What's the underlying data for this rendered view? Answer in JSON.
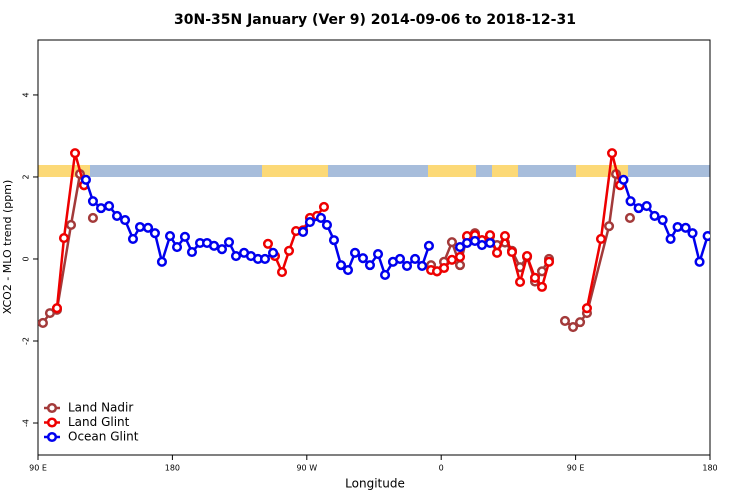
{
  "chart_data": {
    "type": "line",
    "title": "30N-35N January (Ver 9)   2014-09-06 to 2018-12-31",
    "x_label": "Longitude",
    "y_label": "XCO2 - MLO trend (ppm)",
    "xlim": [
      90,
      540
    ],
    "ylim": [
      -4.78,
      5.34
    ],
    "xticks": [
      {
        "value": 90,
        "label": "90 E"
      },
      180,
      {
        "value": 270,
        "label": "90 W"
      },
      {
        "value": 360,
        "label": "0"
      },
      {
        "value": 450,
        "label": "90 E"
      },
      {
        "value": 540,
        "label": "180"
      }
    ],
    "yticks": [
      -4,
      -2,
      0,
      2,
      4
    ],
    "legend": "bottom-left",
    "series": [
      {
        "name": "Land Nadir",
        "color": "#a33a3a",
        "x": [
          93.3,
          98.0,
          102.7,
          112.1,
          118.1,
          120.8,
          124.0,
          126.8,
          350.0,
          353.2,
          357.2,
          361.9,
          367.2,
          372.6,
          377.3,
          382.6,
          387.3,
          392.7,
          397.4,
          402.7,
          407.4,
          412.8,
          417.5,
          422.8,
          427.5,
          432.2,
          438.0,
          442.9,
          448.3,
          453.0,
          457.6,
          472.4,
          477.1,
          482.0,
          486.4
        ],
        "values": [
          -1.56,
          -1.32,
          -1.24,
          0.83,
          2.07,
          1.8,
          null,
          1.0,
          null,
          -0.15,
          -0.3,
          -0.07,
          0.41,
          -0.15,
          0.54,
          0.63,
          0.46,
          0.56,
          0.34,
          0.4,
          0.2,
          -0.2,
          0.05,
          -0.55,
          -0.3,
          0.0,
          null,
          -1.51,
          -1.66,
          -1.54,
          -1.32,
          0.8,
          2.07,
          null,
          1.0
        ]
      },
      {
        "name": "Land Glint",
        "color": "#ee0000",
        "x": [
          102.7,
          107.4,
          114.8,
          120.8,
          200.0,
          244.0,
          248.7,
          253.4,
          258.1,
          262.8,
          267.5,
          272.1,
          276.8,
          281.5,
          320.0,
          353.2,
          357.2,
          361.9,
          367.2,
          372.6,
          377.3,
          382.6,
          387.3,
          392.7,
          397.4,
          402.7,
          407.4,
          412.8,
          417.5,
          422.8,
          427.5,
          432.2,
          440.0,
          457.6,
          467.0,
          474.4,
          479.8
        ],
        "values": [
          -1.2,
          0.51,
          2.58,
          1.8,
          null,
          0.37,
          0.07,
          -0.32,
          0.2,
          0.68,
          0.7,
          1.0,
          1.05,
          1.27,
          null,
          -0.27,
          -0.3,
          -0.22,
          -0.02,
          0.05,
          0.56,
          0.58,
          0.46,
          0.58,
          0.15,
          0.56,
          0.17,
          -0.56,
          0.07,
          -0.46,
          -0.68,
          -0.07,
          null,
          -1.2,
          0.49,
          2.58,
          1.8
        ]
      },
      {
        "name": "Ocean Glint",
        "color": "#0000ee",
        "x": [
          122.1,
          126.8,
          132.2,
          137.6,
          142.9,
          148.3,
          153.6,
          158.3,
          163.7,
          168.3,
          173.0,
          178.4,
          183.1,
          188.4,
          193.1,
          198.5,
          203.2,
          207.9,
          213.2,
          217.9,
          222.6,
          228.0,
          232.6,
          237.3,
          242.0,
          247.4,
          257.0,
          267.5,
          272.1,
          279.5,
          283.5,
          288.2,
          292.9,
          297.6,
          302.3,
          307.6,
          312.3,
          317.7,
          322.4,
          327.7,
          332.4,
          337.1,
          342.5,
          347.2,
          351.8,
          362.0,
          372.6,
          377.3,
          382.6,
          387.3,
          392.7,
          470.0,
          482.1,
          486.8,
          492.2,
          497.6,
          502.9,
          508.3,
          513.6,
          518.3,
          523.7,
          528.3,
          533.0,
          538.4
        ],
        "values": [
          1.93,
          1.41,
          1.24,
          1.29,
          1.05,
          0.95,
          0.49,
          0.78,
          0.76,
          0.63,
          -0.07,
          0.56,
          0.29,
          0.54,
          0.17,
          0.39,
          0.39,
          0.32,
          0.24,
          0.41,
          0.07,
          0.15,
          0.07,
          0.0,
          0.0,
          0.15,
          null,
          0.66,
          0.9,
          1.0,
          0.83,
          0.46,
          -0.15,
          -0.27,
          0.15,
          0.02,
          -0.15,
          0.12,
          -0.39,
          -0.07,
          0.0,
          -0.17,
          0.0,
          -0.17,
          0.32,
          null,
          0.29,
          0.39,
          0.44,
          0.34,
          0.39,
          null,
          1.93,
          1.41,
          1.24,
          1.29,
          1.05,
          0.95,
          0.49,
          0.78,
          0.76,
          0.63,
          -0.07,
          0.56
        ]
      }
    ]
  }
}
